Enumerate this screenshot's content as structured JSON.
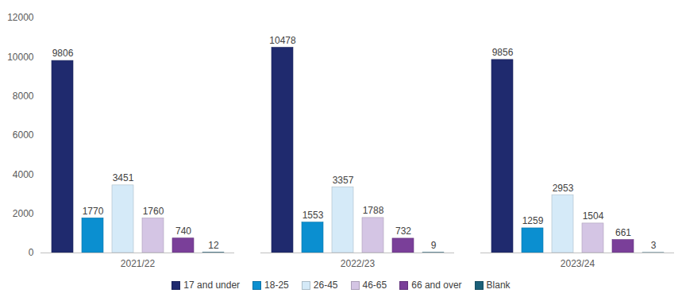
{
  "chart_data": {
    "type": "bar",
    "categories": [
      "2021/22",
      "2022/23",
      "2023/24"
    ],
    "series": [
      {
        "name": "17 and under",
        "color": "#1f2a6e",
        "values": [
          9806,
          10478,
          9856
        ]
      },
      {
        "name": "18-25",
        "color": "#0b8fd0",
        "values": [
          1770,
          1553,
          1259
        ]
      },
      {
        "name": "26-45",
        "color": "#d5eaf8",
        "values": [
          3451,
          3357,
          2953
        ]
      },
      {
        "name": "46-65",
        "color": "#d4c5e4",
        "values": [
          1760,
          1788,
          1504
        ]
      },
      {
        "name": "66 and over",
        "color": "#7a3f99",
        "values": [
          740,
          732,
          661
        ]
      },
      {
        "name": "Blank",
        "color": "#1b6079",
        "values": [
          12,
          9,
          3
        ]
      }
    ],
    "ylim": [
      0,
      12000
    ],
    "yticks": [
      0,
      2000,
      4000,
      6000,
      8000,
      10000,
      12000
    ],
    "grid": false,
    "legend": "bottom",
    "data_labels": true
  }
}
